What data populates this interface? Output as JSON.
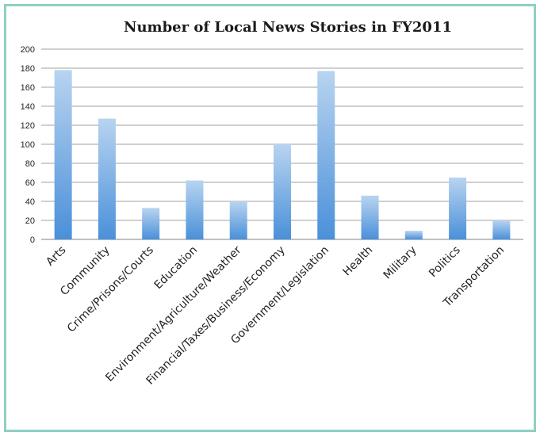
{
  "chart_data": {
    "type": "bar",
    "title": "Number of Local News Stories in FY2011",
    "xlabel": "",
    "ylabel": "",
    "ylim": [
      0,
      200
    ],
    "yticks": [
      0,
      20,
      40,
      60,
      80,
      100,
      120,
      140,
      160,
      180,
      200
    ],
    "grid": true,
    "legend": "none",
    "categories": [
      "Arts",
      "Community",
      "Crime/Prisons/Courts",
      "Education",
      "Environment/Agriculture/Weather",
      "Financial/Taxes/Business/Economy",
      "Government/Legislation",
      "Health",
      "Military",
      "Politics",
      "Transportation"
    ],
    "values": [
      178,
      127,
      33,
      62,
      40,
      100,
      177,
      46,
      9,
      65,
      20
    ],
    "colors": {
      "bar_top": "#b8d4f0",
      "bar_bottom": "#4a90d9",
      "grid": "#a0a0a0",
      "frame": "#8fd0c4"
    }
  }
}
